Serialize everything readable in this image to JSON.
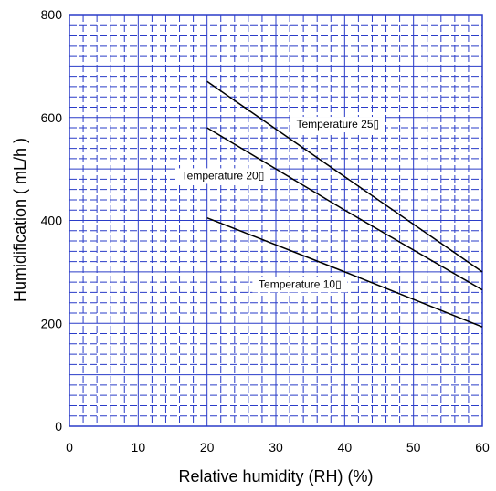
{
  "chart_data": {
    "type": "line",
    "title": "",
    "xlabel": "Relative humidity (RH) (%)",
    "ylabel": "Humidification ( mL/h )",
    "xlim": [
      0,
      60
    ],
    "ylim": [
      0,
      800
    ],
    "xticks": [
      0,
      10,
      20,
      30,
      40,
      50,
      60
    ],
    "yticks": [
      0,
      200,
      400,
      600,
      800
    ],
    "grid": true,
    "grid_color": "#2a3cc8",
    "line_color": "#000000",
    "series": [
      {
        "name": "Temperature 25▯",
        "x": [
          20,
          40,
          60
        ],
        "y": [
          670,
          485,
          300
        ]
      },
      {
        "name": "Temperature 20▯",
        "x": [
          20,
          40,
          60
        ],
        "y": [
          580,
          420,
          265
        ]
      },
      {
        "name": "Temperature 10▯",
        "x": [
          20,
          40,
          60
        ],
        "y": [
          405,
          300,
          193
        ]
      }
    ]
  }
}
